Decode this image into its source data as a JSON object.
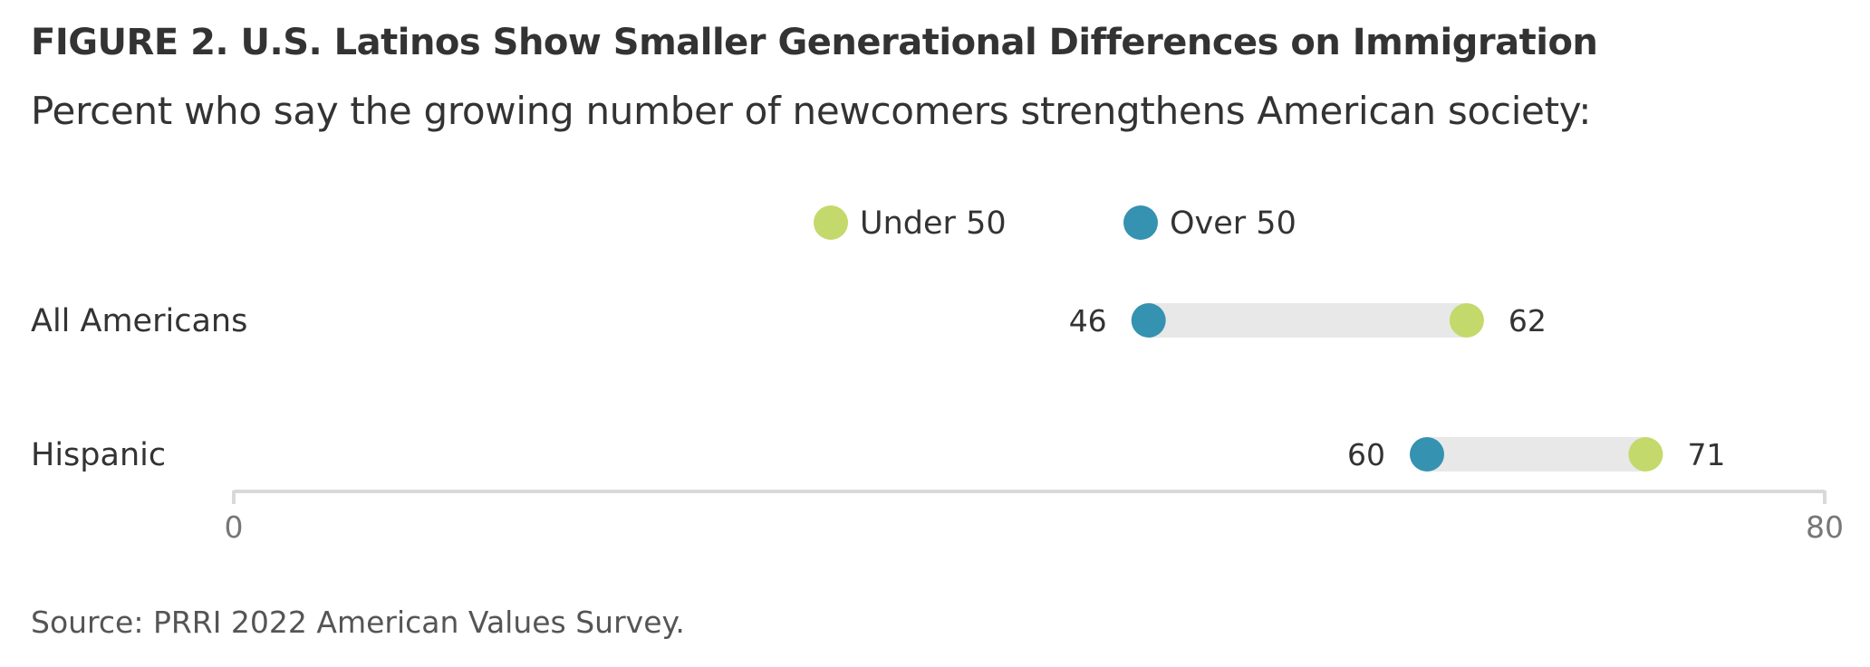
{
  "title": "FIGURE 2.  U.S. Latinos Show Smaller Generational Differences on Immigration",
  "subtitle": "Percent who say the growing number of newcomers strengthens American society:",
  "source": "Source: PRRI 2022 American Values Survey.",
  "chart_data": {
    "type": "dumbbell",
    "categories": [
      "All Americans",
      "Hispanic"
    ],
    "series": [
      {
        "name": "Under 50",
        "color": "#c3d96b",
        "values": [
          62,
          71
        ]
      },
      {
        "name": "Over 50",
        "color": "#3592b0",
        "values": [
          46,
          60
        ]
      }
    ],
    "xlim": [
      0,
      80
    ],
    "xticks": [
      0,
      80
    ],
    "legend_position": "top-center",
    "grid": false,
    "range_bar_color": "#e8e8e8",
    "axis_color": "#d9d9d9"
  }
}
